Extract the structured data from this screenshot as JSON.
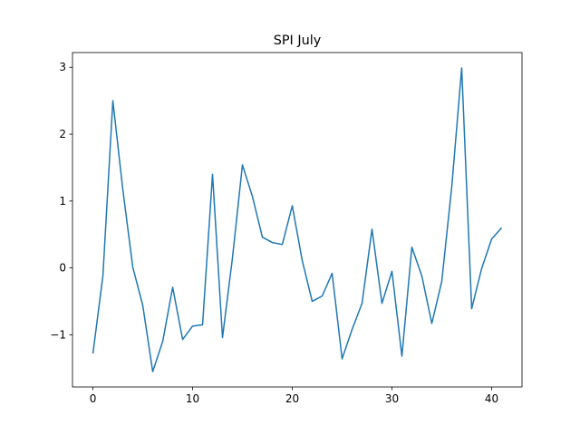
{
  "chart_data": {
    "type": "line",
    "title": "SPI July",
    "xlabel": "",
    "ylabel": "",
    "xlim": [
      -2.05,
      43.05
    ],
    "ylim": [
      -1.78,
      3.22
    ],
    "xticks": [
      0,
      10,
      20,
      30,
      40
    ],
    "yticks": [
      -1,
      0,
      1,
      2,
      3
    ],
    "ytick_labels": [
      "−1",
      "0",
      "1",
      "2",
      "3"
    ],
    "grid": false,
    "series": [
      {
        "color": "#1f77b4",
        "x": [
          0,
          1,
          2,
          3,
          4,
          5,
          6,
          7,
          8,
          9,
          10,
          11,
          12,
          13,
          14,
          15,
          16,
          17,
          18,
          19,
          20,
          21,
          22,
          23,
          24,
          25,
          26,
          27,
          28,
          29,
          30,
          31,
          32,
          33,
          34,
          35,
          36,
          37,
          38,
          39,
          40,
          41
        ],
        "values": [
          -1.28,
          -0.12,
          2.5,
          1.17,
          0.01,
          -0.56,
          -1.55,
          -1.1,
          -0.29,
          -1.07,
          -0.87,
          -0.85,
          1.4,
          -1.04,
          0.15,
          1.54,
          1.07,
          0.46,
          0.38,
          0.35,
          0.93,
          0.11,
          -0.5,
          -0.42,
          -0.08,
          -1.36,
          -0.92,
          -0.53,
          0.58,
          -0.53,
          -0.05,
          -1.32,
          0.31,
          -0.12,
          -0.83,
          -0.2,
          1.21,
          2.99,
          -0.61,
          -0.01,
          0.43,
          0.6
        ]
      }
    ]
  }
}
